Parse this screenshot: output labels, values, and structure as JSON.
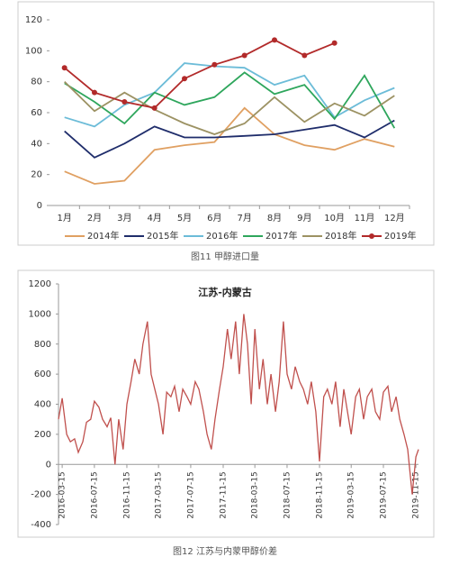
{
  "chart_data": [
    {
      "type": "line",
      "caption": "图11 甲醇进口量",
      "categories": [
        "1月",
        "2月",
        "3月",
        "4月",
        "5月",
        "6月",
        "7月",
        "8月",
        "9月",
        "10月",
        "11月",
        "12月"
      ],
      "ylim": [
        0,
        120
      ],
      "yticks": [
        0,
        20,
        40,
        60,
        80,
        100,
        120
      ],
      "grid": false,
      "legend": "bottom",
      "series": [
        {
          "name": "2014年",
          "color": "#e0a062",
          "values": [
            22,
            14,
            16,
            36,
            39,
            41,
            63,
            46,
            39,
            36,
            43,
            38
          ]
        },
        {
          "name": "2015年",
          "color": "#1f2d6b",
          "values": [
            48,
            31,
            40,
            51,
            44,
            44,
            45,
            46,
            49,
            52,
            44,
            55
          ]
        },
        {
          "name": "2016年",
          "color": "#6cbcd8",
          "values": [
            57,
            51,
            65,
            73,
            92,
            90,
            89,
            78,
            84,
            57,
            68,
            76
          ]
        },
        {
          "name": "2017年",
          "color": "#2ea65c",
          "values": [
            79,
            67,
            53,
            73,
            65,
            70,
            86,
            72,
            78,
            56,
            84,
            50
          ]
        },
        {
          "name": "2018年",
          "color": "#9c9263",
          "values": [
            80,
            61,
            73,
            62,
            53,
            46,
            53,
            70,
            54,
            66,
            58,
            71
          ]
        },
        {
          "name": "2019年",
          "color": "#b22a2a",
          "marker": "circle",
          "values": [
            89,
            73,
            67,
            63,
            82,
            91,
            97,
            107,
            97,
            105,
            null,
            null
          ]
        }
      ]
    },
    {
      "type": "line",
      "title": "江苏-内蒙古",
      "caption": "图12 江苏与内蒙甲醇价差",
      "xlim": [
        "2016-03-01",
        "2019-11-25"
      ],
      "xticks": [
        "2016-03-15",
        "2016-07-15",
        "2016-11-15",
        "2017-03-15",
        "2017-07-15",
        "2017-11-15",
        "2018-03-15",
        "2018-07-15",
        "2018-11-15",
        "2019-03-15",
        "2019-07-15",
        "2019-11-15"
      ],
      "ylim": [
        -400,
        1200
      ],
      "yticks": [
        -400,
        -200,
        0,
        200,
        400,
        600,
        800,
        1000,
        1200
      ],
      "grid": false,
      "series": [
        {
          "color": "#c0504d",
          "x": [
            "2016-03-01",
            "2016-03-15",
            "2016-04-01",
            "2016-04-15",
            "2016-05-01",
            "2016-05-15",
            "2016-06-01",
            "2016-06-15",
            "2016-07-01",
            "2016-07-15",
            "2016-08-01",
            "2016-08-15",
            "2016-09-01",
            "2016-09-15",
            "2016-10-01",
            "2016-10-15",
            "2016-11-01",
            "2016-11-15",
            "2016-12-01",
            "2016-12-15",
            "2017-01-01",
            "2017-01-15",
            "2017-02-01",
            "2017-02-15",
            "2017-03-01",
            "2017-03-15",
            "2017-04-01",
            "2017-04-15",
            "2017-05-01",
            "2017-05-15",
            "2017-06-01",
            "2017-06-15",
            "2017-07-01",
            "2017-07-15",
            "2017-08-01",
            "2017-08-15",
            "2017-09-01",
            "2017-09-15",
            "2017-10-01",
            "2017-10-15",
            "2017-11-01",
            "2017-11-15",
            "2017-12-01",
            "2017-12-15",
            "2018-01-01",
            "2018-01-15",
            "2018-02-01",
            "2018-02-15",
            "2018-03-01",
            "2018-03-15",
            "2018-04-01",
            "2018-04-15",
            "2018-05-01",
            "2018-05-15",
            "2018-06-01",
            "2018-06-15",
            "2018-07-01",
            "2018-07-15",
            "2018-08-01",
            "2018-08-15",
            "2018-09-01",
            "2018-09-15",
            "2018-10-01",
            "2018-10-15",
            "2018-11-01",
            "2018-11-15",
            "2018-12-01",
            "2018-12-15",
            "2019-01-01",
            "2019-01-15",
            "2019-02-01",
            "2019-02-15",
            "2019-03-01",
            "2019-03-15",
            "2019-04-01",
            "2019-04-15",
            "2019-05-01",
            "2019-05-15",
            "2019-06-01",
            "2019-06-15",
            "2019-07-01",
            "2019-07-15",
            "2019-08-01",
            "2019-08-15",
            "2019-09-01",
            "2019-09-15",
            "2019-10-01",
            "2019-10-15",
            "2019-11-01",
            "2019-11-15",
            "2019-11-25"
          ],
          "values": [
            300,
            440,
            200,
            150,
            170,
            80,
            150,
            280,
            300,
            420,
            380,
            300,
            250,
            310,
            0,
            300,
            100,
            400,
            550,
            700,
            600,
            800,
            950,
            600,
            500,
            400,
            200,
            480,
            450,
            520,
            350,
            500,
            450,
            400,
            550,
            500,
            350,
            200,
            100,
            300,
            500,
            650,
            900,
            700,
            950,
            600,
            1000,
            800,
            400,
            900,
            500,
            700,
            400,
            600,
            350,
            550,
            950,
            600,
            500,
            650,
            550,
            500,
            400,
            550,
            350,
            20,
            450,
            500,
            400,
            550,
            250,
            500,
            350,
            200,
            450,
            500,
            300,
            450,
            500,
            350,
            300,
            480,
            520,
            350,
            450,
            300,
            200,
            100,
            -200,
            50,
            100
          ]
        }
      ]
    }
  ]
}
